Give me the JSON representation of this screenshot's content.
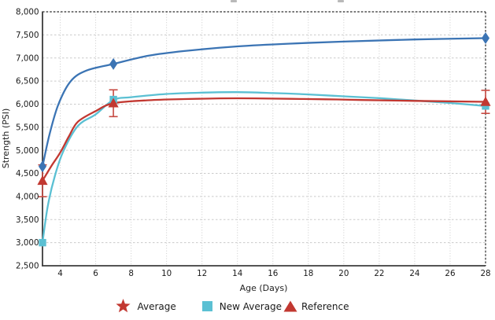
{
  "chart": {
    "y_axis": {
      "label": "Strength (PSI)"
    },
    "x_axis": {
      "label": "Age (Days)"
    },
    "legend": [
      {
        "label": "Average",
        "marker": "star-icon",
        "color": "#C23831"
      },
      {
        "label": "New Average",
        "marker": "square-icon",
        "color": "#5BC0D3"
      },
      {
        "label": "Reference",
        "marker": "triangle-icon",
        "color": "#C23831"
      }
    ]
  },
  "colors": {
    "blue_series": "#3B74B4",
    "cyan_series": "#5BC0D3",
    "red_series": "#C23831",
    "error_bar": "#C64A42",
    "grid": "#CACACA",
    "axis": "#3B3B3B",
    "border_dashed": "#2B2B2B",
    "text": "#1A1A1A"
  },
  "chart_data": {
    "type": "line",
    "title": "",
    "xlabel": "Age (Days)",
    "ylabel": "Strength (PSI)",
    "xlim": [
      3,
      28
    ],
    "ylim": [
      2500,
      8000
    ],
    "grid": true,
    "legend_position": "bottom",
    "x_ticks": [
      4,
      6,
      8,
      10,
      12,
      14,
      16,
      18,
      20,
      22,
      24,
      26,
      28
    ],
    "y_ticks": [
      {
        "v": 2500,
        "label": "2,500"
      },
      {
        "v": 3000,
        "label": "3,000"
      },
      {
        "v": 3500,
        "label": "3,500"
      },
      {
        "v": 4000,
        "label": "4,000"
      },
      {
        "v": 4500,
        "label": "4,500"
      },
      {
        "v": 5000,
        "label": "5,000"
      },
      {
        "v": 5500,
        "label": "5,500"
      },
      {
        "v": 6000,
        "label": "6,000"
      },
      {
        "v": 6500,
        "label": "6,500"
      },
      {
        "v": 7000,
        "label": "7,000"
      },
      {
        "v": 7500,
        "label": "7,500"
      },
      {
        "v": 8000,
        "label": "8,000"
      }
    ],
    "series": [
      {
        "name": "Average",
        "legend_marker": "star (red)",
        "plot_marker": "diamond",
        "color": "#3B74B4",
        "x": [
          3,
          7,
          28
        ],
        "y": [
          4650,
          6870,
          7430
        ],
        "smoothed_path_points": [
          [
            3,
            4650
          ],
          [
            3.4,
            5350
          ],
          [
            3.9,
            6000
          ],
          [
            4.6,
            6500
          ],
          [
            5.5,
            6730
          ],
          [
            7,
            6870
          ],
          [
            9,
            7050
          ],
          [
            11,
            7150
          ],
          [
            14,
            7250
          ],
          [
            17,
            7310
          ],
          [
            20,
            7355
          ],
          [
            24,
            7400
          ],
          [
            28,
            7430
          ]
        ]
      },
      {
        "name": "New Average",
        "legend_marker": "square (cyan)",
        "plot_marker": "square",
        "color": "#5BC0D3",
        "x": [
          3,
          7,
          28
        ],
        "y": [
          3000,
          6100,
          5960
        ],
        "smoothed_path_points": [
          [
            3,
            3000
          ],
          [
            3.3,
            3800
          ],
          [
            3.7,
            4450
          ],
          [
            4.2,
            5000
          ],
          [
            5,
            5530
          ],
          [
            6,
            5780
          ],
          [
            7,
            6090
          ],
          [
            8,
            6150
          ],
          [
            10,
            6220
          ],
          [
            12,
            6250
          ],
          [
            14,
            6260
          ],
          [
            16,
            6240
          ],
          [
            18,
            6210
          ],
          [
            20,
            6170
          ],
          [
            22,
            6130
          ],
          [
            24,
            6080
          ],
          [
            26,
            6025
          ],
          [
            28,
            5960
          ]
        ]
      },
      {
        "name": "Reference",
        "legend_marker": "triangle (red)",
        "plot_marker": "triangle-up",
        "color": "#C23831",
        "x": [
          3,
          7,
          28
        ],
        "y": [
          4340,
          6020,
          6050
        ],
        "y_error": [
          345,
          290,
          250
        ],
        "error_bars": [
          {
            "x": 3,
            "low": 3995,
            "high": 4685
          },
          {
            "x": 7,
            "low": 5730,
            "high": 6310
          },
          {
            "x": 28,
            "low": 5800,
            "high": 6300
          }
        ],
        "smoothed_path_points": [
          [
            3,
            4340
          ],
          [
            3.5,
            4660
          ],
          [
            4,
            4950
          ],
          [
            4.5,
            5310
          ],
          [
            5,
            5620
          ],
          [
            6,
            5850
          ],
          [
            7,
            6020
          ],
          [
            9,
            6085
          ],
          [
            11,
            6110
          ],
          [
            13,
            6125
          ],
          [
            15,
            6125
          ],
          [
            17,
            6115
          ],
          [
            19,
            6105
          ],
          [
            21,
            6090
          ],
          [
            24,
            6070
          ],
          [
            28,
            6050
          ]
        ]
      }
    ]
  }
}
